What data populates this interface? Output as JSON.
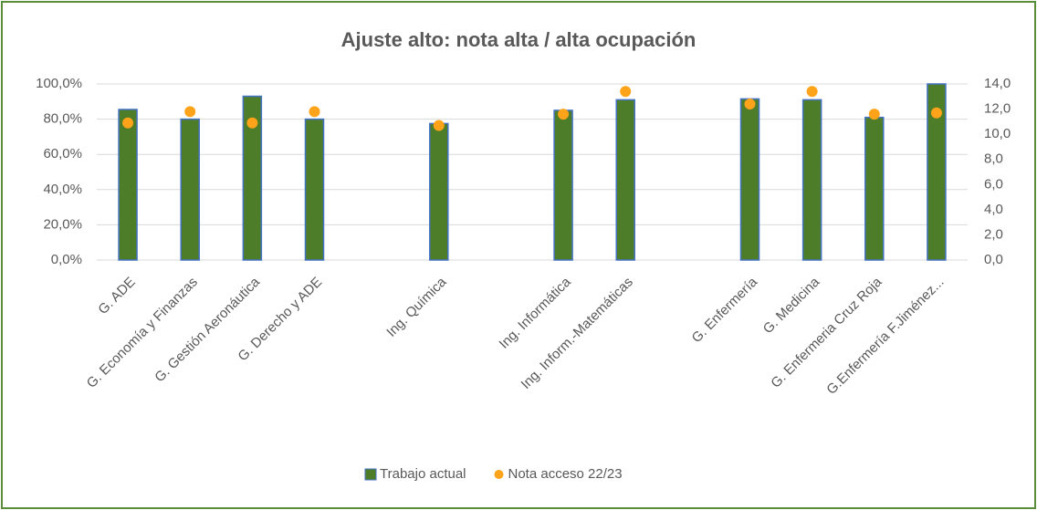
{
  "chart_data": {
    "type": "bar",
    "title": "Ajuste alto: nota alta / alta ocupación",
    "categories": [
      "G. ADE",
      "G. Economía y Finanzas",
      "G. Gestión Aeronáutica",
      "G. Derecho y ADE",
      null,
      "Ing. Química",
      null,
      "Ing. Informática",
      "Ing. Inform.-Matemáticas",
      null,
      "G. Enfermería",
      "G. Medicina",
      "G. Enfermeria Cruz Roja",
      "G.Enfermería F.Jiménez..."
    ],
    "series": [
      {
        "name": "Trabajo actual",
        "type": "bar",
        "color": "#4e7d2a",
        "edge": "#4472c4",
        "values": [
          85.5,
          80,
          93,
          80,
          null,
          77.5,
          null,
          85,
          91,
          null,
          91.5,
          91,
          81,
          100
        ]
      },
      {
        "name": "Nota acceso 22/23",
        "type": "scatter",
        "axis": "y2",
        "color": "#ffa31a",
        "values": [
          10.9,
          11.8,
          10.9,
          11.8,
          null,
          10.7,
          null,
          11.6,
          13.4,
          null,
          12.4,
          13.4,
          11.6,
          11.7
        ]
      }
    ],
    "ylim": [
      0,
      100
    ],
    "yticks": [
      {
        "value": 0,
        "label": "0,0%"
      },
      {
        "value": 20,
        "label": "20,0%"
      },
      {
        "value": 40,
        "label": "40,0%"
      },
      {
        "value": 60,
        "label": "60,0%"
      },
      {
        "value": 80,
        "label": "80,0%"
      },
      {
        "value": 100,
        "label": "100,0%"
      }
    ],
    "y2lim": [
      0,
      14
    ],
    "y2ticks": [
      {
        "value": 0,
        "label": "0,0"
      },
      {
        "value": 2,
        "label": "2,0"
      },
      {
        "value": 4,
        "label": "4,0"
      },
      {
        "value": 6,
        "label": "6,0"
      },
      {
        "value": 8,
        "label": "8,0"
      },
      {
        "value": 10,
        "label": "10,0"
      },
      {
        "value": 12,
        "label": "12,0"
      },
      {
        "value": 14,
        "label": "14,0"
      }
    ],
    "grid": true,
    "legend": "bottom"
  }
}
